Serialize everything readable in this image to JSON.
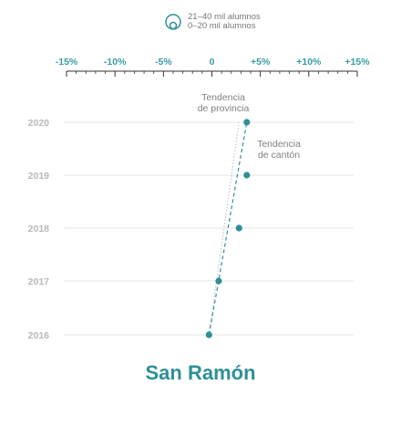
{
  "legend": {
    "items": [
      {
        "label": "21–40 mil alumnos"
      },
      {
        "label": "0–20 mil alumnos"
      }
    ]
  },
  "title": "San Ramón",
  "colors": {
    "accent": "#2e8f97",
    "tick_text": "#3a9ba5",
    "year_text": "#b8b8b8",
    "grid": "#e6e6e6",
    "province_trend": "#bbbbbb"
  },
  "chart_data": {
    "type": "scatter",
    "title": "San Ramón",
    "x_ticks": [
      "-15%",
      "-10%",
      "-5%",
      "0",
      "+5%",
      "+10%",
      "+15%"
    ],
    "x_tick_values": [
      -15,
      -10,
      -5,
      0,
      5,
      10,
      15
    ],
    "xlim": [
      -15,
      15
    ],
    "y_categories": [
      "2020",
      "2019",
      "2018",
      "2017",
      "2016"
    ],
    "grid": true,
    "points": [
      {
        "year": "2016",
        "x": -0.3
      },
      {
        "year": "2017",
        "x": 0.7
      },
      {
        "year": "2018",
        "x": 2.8
      },
      {
        "year": "2019",
        "x": 3.6
      },
      {
        "year": "2020",
        "x": 3.6
      }
    ],
    "canton_trend": {
      "label": [
        "Tendencia",
        "de cantón"
      ],
      "from": {
        "year": "2016",
        "x": -0.3
      },
      "to": {
        "year": "2020",
        "x": 3.6
      }
    },
    "province_trend": {
      "label": [
        "Tendencia",
        "de provincia"
      ],
      "from": {
        "year": "2016",
        "x": -0.3
      },
      "to": {
        "year": "2020",
        "x": 2.8
      }
    }
  }
}
